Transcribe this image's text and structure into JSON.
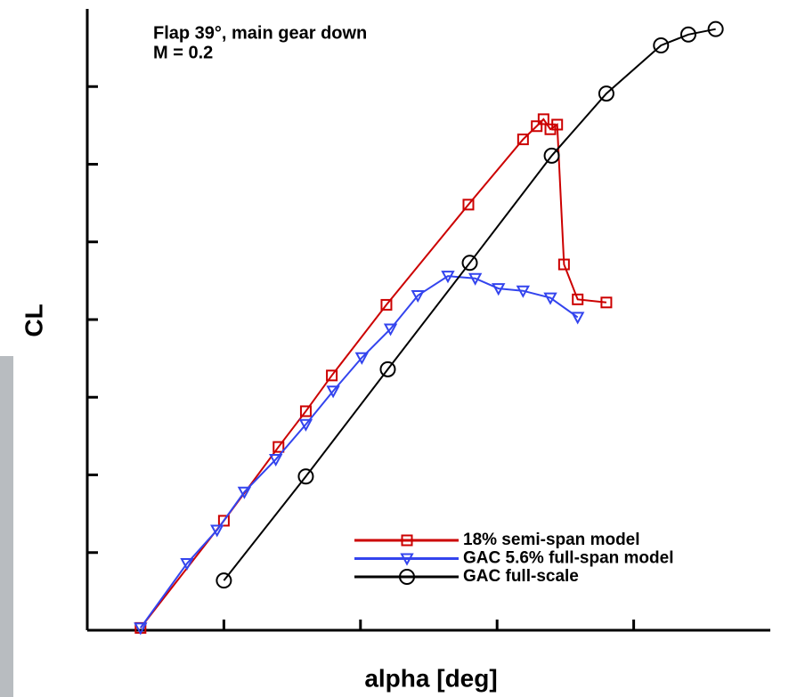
{
  "chart_data": {
    "type": "line",
    "annotations": [
      "Flap 39°, main gear down",
      "M = 0.2"
    ],
    "xlabel": "alpha [deg]",
    "ylabel": "CL",
    "xlim": [
      0,
      5
    ],
    "xticks": [
      1,
      2,
      3,
      4
    ],
    "ylim": [
      0,
      8
    ],
    "yticks": [
      1,
      2,
      3,
      4,
      5,
      6,
      7
    ],
    "legend": "lower right",
    "series": [
      {
        "name": "18% semi-span model",
        "color": "#cc0000",
        "marker": "square",
        "x": [
          0.39,
          1.0,
          1.4,
          1.6,
          1.79,
          2.19,
          2.79,
          3.19,
          3.29,
          3.34,
          3.39,
          3.44,
          3.49,
          3.59,
          3.8
        ],
        "values": [
          0.03,
          1.41,
          2.36,
          2.82,
          3.28,
          4.19,
          5.48,
          6.32,
          6.49,
          6.58,
          6.45,
          6.51,
          4.71,
          4.26,
          4.22
        ]
      },
      {
        "name": "GAC 5.6% full-span model",
        "color": "#3344ee",
        "marker": "triangle",
        "x": [
          0.39,
          0.73,
          0.95,
          1.15,
          1.38,
          1.6,
          1.8,
          2.01,
          2.22,
          2.42,
          2.64,
          2.84,
          3.01,
          3.19,
          3.39,
          3.59
        ],
        "values": [
          0.03,
          0.86,
          1.29,
          1.78,
          2.2,
          2.65,
          3.08,
          3.51,
          3.88,
          4.31,
          4.56,
          4.53,
          4.4,
          4.37,
          4.28,
          4.03
        ]
      },
      {
        "name": "GAC full-scale",
        "color": "#000000",
        "marker": "circle",
        "x": [
          1.0,
          1.6,
          2.2,
          2.8,
          3.4,
          3.8,
          4.2,
          4.4,
          4.6
        ],
        "values": [
          0.64,
          1.98,
          3.36,
          4.73,
          6.11,
          6.91,
          7.53,
          7.67,
          7.74
        ]
      }
    ]
  }
}
